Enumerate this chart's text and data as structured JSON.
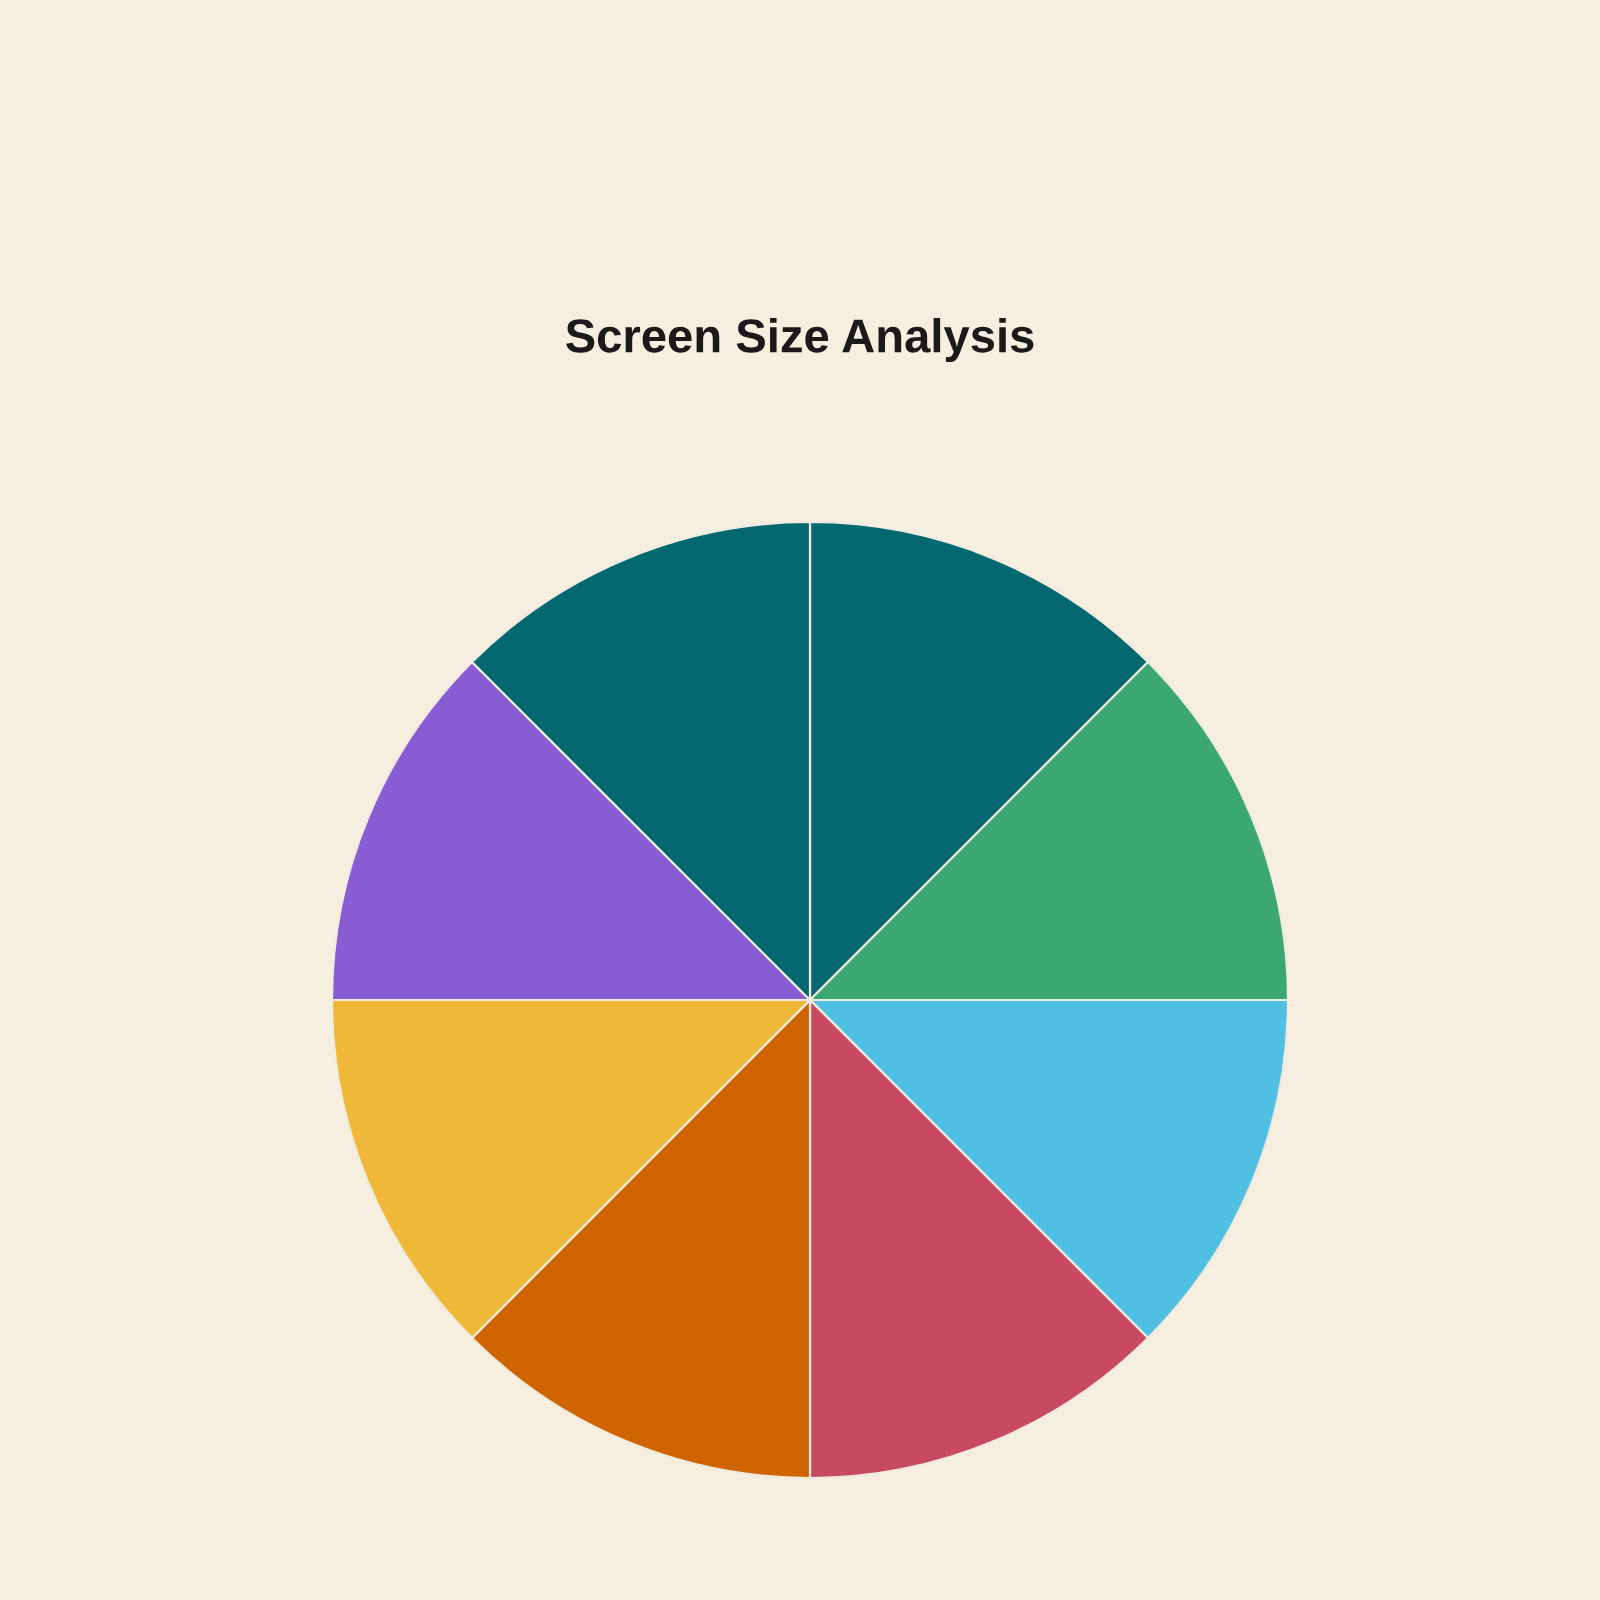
{
  "chart_data": {
    "type": "pie",
    "title": "Screen Size Analysis",
    "categories": [
      null,
      null,
      null,
      null,
      null,
      null,
      null,
      null
    ],
    "values": [
      12.5,
      12.5,
      12.5,
      12.5,
      12.5,
      12.5,
      12.5,
      12.5
    ],
    "colors": [
      "#036870",
      "#3aa870",
      "#50c0e2",
      "#c84a60",
      "#d06400",
      "#f0b838",
      "#8a5cd4",
      "#036870"
    ]
  }
}
